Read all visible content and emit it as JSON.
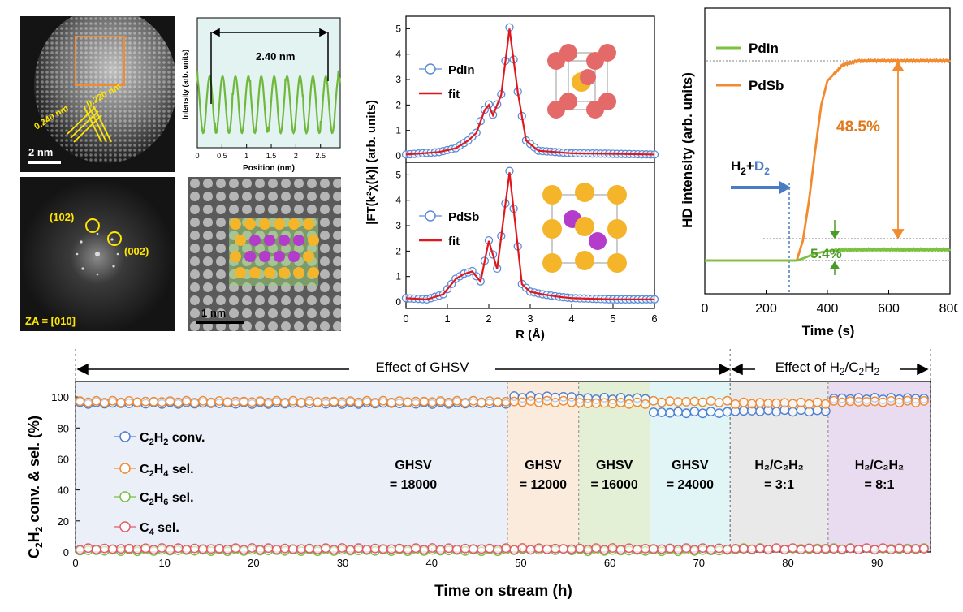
{
  "colors": {
    "orange": "#f28a30",
    "orange_dark": "#e0781e",
    "green": "#7cc242",
    "green_dark": "#4d9a2a",
    "blue_arrow": "#4a7cc4",
    "red_fit": "#e0171c",
    "exafs_marker": "#5b8bd6",
    "c2h2": "#4f7fcf",
    "c2h4": "#f28a30",
    "c2h6": "#77c043",
    "c4": "#e35b6a",
    "yellow": "#ffe600",
    "pd_atom": "#e46a6a",
    "in_atom": "#f4b52a",
    "sb_atom": "#b43ccb",
    "phase_colors": [
      "#eaeff8",
      "#fbebdc",
      "#e4f0d5",
      "#e1f5f7",
      "#e9e9e9",
      "#eadcf0"
    ]
  },
  "tem": {
    "panel_a": {
      "scale": "2 nm",
      "d1": "0.240 nm",
      "d2": "0.220 nm"
    },
    "fft": {
      "spot1": "(102)",
      "spot2": "(002)",
      "zone_axis": "ZA = [010]"
    },
    "atomic": {
      "scale": "1 nm"
    }
  },
  "profile": {
    "xlabel": "Position (nm)",
    "ylabel": "Intensity (arb. units)",
    "ticks": [
      "0",
      "0.5",
      "1",
      "1.5",
      "2",
      "2.5"
    ],
    "annotation": "2.40 nm",
    "xlim": [
      0,
      2.9
    ]
  },
  "exafs": {
    "ylabel": "|FT(k²χ(k)| (arb. units)",
    "xlabel": "R (Å)",
    "xticks": [
      "0",
      "1",
      "2",
      "3",
      "4",
      "5",
      "6"
    ],
    "yticks": [
      "0",
      "1",
      "2",
      "3",
      "4",
      "5"
    ],
    "top": {
      "sample": "PdIn",
      "fit": "fit"
    },
    "bottom": {
      "sample": "PdSb",
      "fit": "fit"
    }
  },
  "hd": {
    "ylabel": "HD intensity (arb. units)",
    "xlabel": "Time (s)",
    "xticks": [
      "0",
      "200",
      "400",
      "600",
      "800"
    ],
    "legend": [
      "PdIn",
      "PdSb"
    ],
    "gas_h": "H",
    "gas_h_sub": "2",
    "gas_plus": "+",
    "gas_d": "D",
    "gas_d_sub": "2",
    "pct_sb": "48.5%",
    "pct_in": "5.4%"
  },
  "stability": {
    "ylabel_parts": {
      "c": "C",
      "sub": "2",
      "h": "H",
      "sub2": "2",
      "rest": " conv. & sel.  (%)"
    },
    "xlabel": "Time on stream (h)",
    "xticks": [
      "0",
      "10",
      "20",
      "30",
      "40",
      "50",
      "60",
      "70",
      "80",
      "90"
    ],
    "yticks": [
      "0",
      "20",
      "40",
      "60",
      "80",
      "100"
    ],
    "region_ghsv": "Effect of GHSV",
    "region_ratio": {
      "main": "Effect of H",
      "s1": "2",
      "mid": "/C",
      "s2": "2",
      "mid2": "H",
      "s3": "2"
    },
    "legend": [
      {
        "main": "C",
        "s1": "2",
        "mid": "H",
        "s2": "2",
        "tail": " conv."
      },
      {
        "main": "C",
        "s1": "2",
        "mid": "H",
        "s2": "4",
        "tail": " sel."
      },
      {
        "main": "C",
        "s1": "2",
        "mid": "H",
        "s2": "6",
        "tail": " sel."
      },
      {
        "main": "C",
        "s1": "4",
        "mid": "",
        "s2": "",
        "tail": " sel."
      }
    ],
    "phases": [
      {
        "line1": "GHSV",
        "line2": "= 18000"
      },
      {
        "line1": "GHSV",
        "line2": "= 12000"
      },
      {
        "line1": "GHSV",
        "line2": "= 16000"
      },
      {
        "line1": "GHSV",
        "line2": "= 24000"
      },
      {
        "line1": "H₂/C₂H₂",
        "line2": "= 3:1"
      },
      {
        "line1": "H₂/C₂H₂",
        "line2": "= 8:1"
      }
    ]
  },
  "chart_data": [
    {
      "type": "line",
      "title": "",
      "xlabel": "Position (nm)",
      "ylabel": "Intensity (arb. units)",
      "xlim": [
        0,
        2.9
      ],
      "series": [
        {
          "x": [
            0.25,
            0.51,
            0.78,
            1.04,
            1.3,
            1.57,
            1.83,
            2.09,
            2.36,
            2.62
          ],
          "values": [
            1,
            1,
            1,
            1,
            1,
            1,
            1,
            1,
            1,
            1
          ]
        }
      ],
      "annotations": [
        "2.40 nm"
      ]
    },
    {
      "type": "line",
      "xlabel": "R (Å)",
      "ylabel": "|FT(k²χ(k)| (arb. units)",
      "xlim": [
        0,
        6
      ],
      "ylim": [
        0,
        5.3
      ],
      "panels": [
        {
          "label": "PdIn",
          "series": [
            {
              "name": "PdIn",
              "x": [
                0,
                0.4,
                0.8,
                1.2,
                1.5,
                1.7,
                1.9,
                2.0,
                2.1,
                2.3,
                2.5,
                2.7,
                2.9,
                3.2,
                3.6,
                4,
                5,
                6
              ],
              "values": [
                0.05,
                0.1,
                0.15,
                0.3,
                0.6,
                0.9,
                1.8,
                2.0,
                1.6,
                2.4,
                5.0,
                2.5,
                0.6,
                0.2,
                0.15,
                0.1,
                0.08,
                0.05
              ]
            },
            {
              "name": "fit",
              "x": [
                0,
                0.4,
                0.8,
                1.2,
                1.5,
                1.7,
                1.9,
                2.0,
                2.1,
                2.3,
                2.5,
                2.7,
                2.9,
                3.2,
                3.6,
                4,
                5,
                6
              ],
              "values": [
                0.05,
                0.1,
                0.15,
                0.3,
                0.6,
                0.9,
                1.8,
                2.0,
                1.6,
                2.4,
                5.0,
                2.5,
                0.6,
                0.2,
                0.15,
                0.1,
                0.08,
                0.05
              ]
            }
          ]
        },
        {
          "label": "PdSb",
          "series": [
            {
              "name": "PdSb",
              "x": [
                0,
                0.5,
                0.9,
                1.2,
                1.4,
                1.6,
                1.8,
                2.0,
                2.2,
                2.5,
                2.8,
                3.0,
                3.3,
                3.7,
                4,
                5,
                6
              ],
              "values": [
                0.15,
                0.1,
                0.3,
                0.9,
                1.1,
                1.2,
                0.8,
                2.4,
                1.3,
                5.1,
                0.7,
                0.4,
                0.3,
                0.2,
                0.15,
                0.1,
                0.1
              ]
            },
            {
              "name": "fit",
              "x": [
                0,
                0.5,
                0.9,
                1.2,
                1.4,
                1.6,
                1.8,
                2.0,
                2.2,
                2.5,
                2.8,
                3.0,
                3.3,
                3.7,
                4,
                5,
                6
              ],
              "values": [
                0.15,
                0.1,
                0.3,
                0.9,
                1.1,
                1.2,
                0.8,
                2.4,
                1.3,
                5.1,
                0.7,
                0.4,
                0.3,
                0.2,
                0.15,
                0.1,
                0.1
              ]
            }
          ]
        }
      ]
    },
    {
      "type": "line",
      "xlabel": "Time (s)",
      "ylabel": "HD intensity (arb. units)",
      "xlim": [
        0,
        800
      ],
      "switch_time": 310,
      "series": [
        {
          "name": "PdIn",
          "x": [
            0,
            300,
            320,
            360,
            400,
            450,
            500,
            600,
            800
          ],
          "values": [
            0,
            0,
            0.01,
            0.035,
            0.048,
            0.053,
            0.054,
            0.054,
            0.054
          ]
        },
        {
          "name": "PdSb",
          "x": [
            0,
            300,
            320,
            340,
            360,
            380,
            400,
            450,
            500,
            600,
            800
          ],
          "values": [
            0,
            0,
            0.1,
            0.3,
            0.55,
            0.78,
            0.9,
            0.98,
            1.0,
            1.0,
            1.0
          ]
        }
      ],
      "annotations": [
        "48.5%",
        "5.4%"
      ]
    },
    {
      "type": "scatter",
      "xlabel": "Time on stream (h)",
      "ylim": [
        0,
        110
      ],
      "xlim": [
        0,
        96
      ],
      "phase_boundaries": [
        0,
        48.5,
        56.5,
        64.5,
        73.5,
        84.5,
        96
      ],
      "series": [
        {
          "name": "C₂H₂ conv.",
          "phase_values": [
            96,
            100,
            99,
            90,
            91,
            99
          ]
        },
        {
          "name": "C₂H₄ sel.",
          "phase_values": [
            97,
            97,
            96,
            97,
            96,
            97
          ]
        },
        {
          "name": "C₂H₆ sel.",
          "phase_values": [
            1,
            1.5,
            1,
            1,
            2,
            2
          ]
        },
        {
          "name": "C₄ sel.",
          "phase_values": [
            2,
            2,
            2,
            2,
            2,
            2
          ]
        }
      ]
    }
  ]
}
